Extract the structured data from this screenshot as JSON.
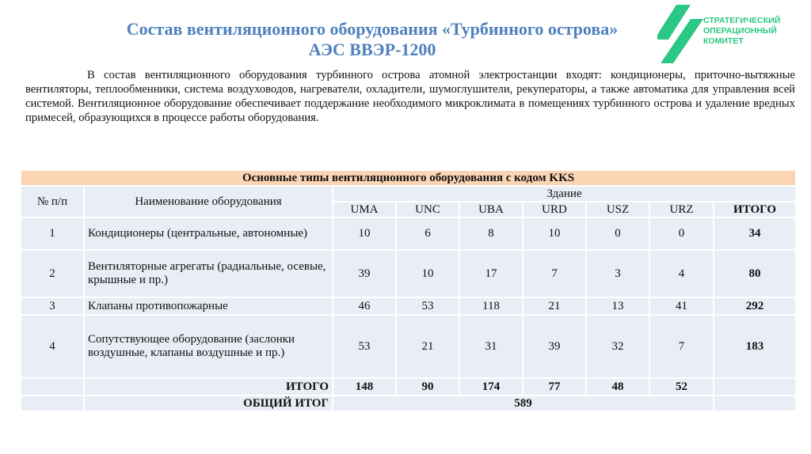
{
  "title_line1": "Состав вентиляционного оборудования «Турбинного острова»",
  "title_line2": "АЭС ВВЭР-1200",
  "paragraph": "В состав вентиляционного оборудования турбинного острова атомной электростанции входят: кондиционеры, приточно-вытяжные вентиляторы, теплообменники, система воздуховодов, нагреватели, охладители, шумоглушители, рекуператоры, а также автоматика для управления всей системой. Вентиляционное оборудование обеспечивает поддержание необходимого микроклимата в помещениях турбинного острова и удаление вредных примесей, образующихся в процессе работы оборудования.",
  "logo": {
    "text": "СТРАТЕГИЧЕСКИЙ ОПЕРАЦИОННЫЙ КОМИТЕТ",
    "color": "#2bc784"
  },
  "table": {
    "caption": "Основные типы вентиляционного оборудования с кодом KKS",
    "col_num": "№ п/п",
    "col_name": "Наименование оборудования",
    "col_building": "Здание",
    "codes": [
      "UMA",
      "UNC",
      "UBA",
      "URD",
      "USZ",
      "URZ"
    ],
    "col_total": "ИТОГО",
    "rows": [
      {
        "n": "1",
        "name": "Кондиционеры (центральные, автономные)",
        "v": [
          "10",
          "6",
          "8",
          "10",
          "0",
          "0"
        ],
        "total": "34"
      },
      {
        "n": "2",
        "name": "Вентиляторные агрегаты (радиальные, осевые, крышные и пр.)",
        "v": [
          "39",
          "10",
          "17",
          "7",
          "3",
          "4"
        ],
        "total": "80"
      },
      {
        "n": "3",
        "name": "Клапаны противопожарные",
        "v": [
          "46",
          "53",
          "118",
          "21",
          "13",
          "41"
        ],
        "total": "292"
      },
      {
        "n": "4",
        "name": "Сопутствующее оборудование (заслонки воздушные, клапаны воздушные и пр.)",
        "v": [
          "53",
          "21",
          "31",
          "39",
          "32",
          "7"
        ],
        "total": "183"
      }
    ],
    "totals_label": "ИТОГО",
    "totals": [
      "148",
      "90",
      "174",
      "77",
      "48",
      "52"
    ],
    "grand_label": "ОБЩИЙ ИТОГ",
    "grand": "589"
  }
}
